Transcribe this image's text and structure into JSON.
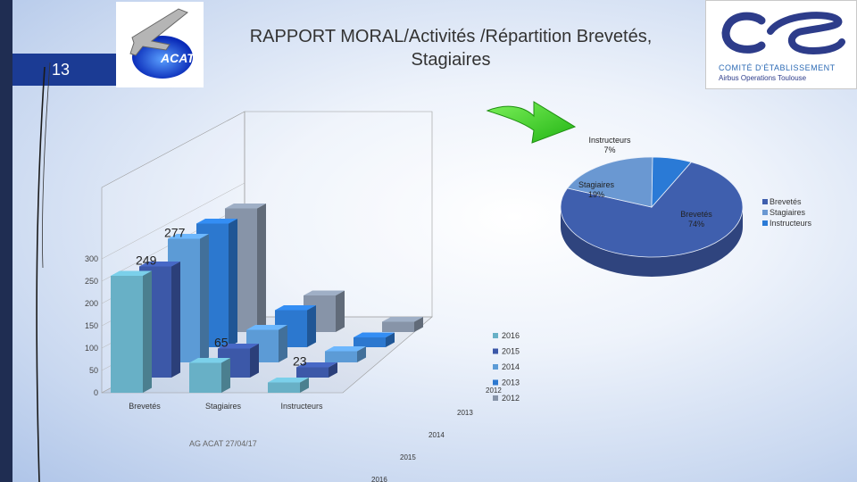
{
  "slide": {
    "number": "13",
    "title_line1": "RAPPORT MORAL/Activités /Répartition Brevetés,",
    "title_line2": "Stagiaires",
    "footer": "AG ACAT 27/04/17",
    "logo_left_text": "ACAT",
    "logo_right_sub1": "COMITÉ D'ÉTABLISSEMENT",
    "logo_right_sub2": "Airbus Operations Toulouse"
  },
  "colors": {
    "sidebar": "#1f2d52",
    "badge": "#1b3b94",
    "arrow": "#44dd22"
  },
  "chart_data": [
    {
      "type": "bar",
      "subtype": "3d-clustered",
      "categories": [
        "Brevetés",
        "Stagiaires",
        "Instructeurs"
      ],
      "yticks": [
        "0",
        "50",
        "100",
        "150",
        "200",
        "250",
        "300"
      ],
      "ylim": [
        0,
        300
      ],
      "series": [
        {
          "name": "2016",
          "color": "#68b0c6",
          "values": [
            262,
            67,
            23
          ]
        },
        {
          "name": "2015",
          "color": "#3c58a8",
          "values": [
            249,
            65,
            23
          ]
        },
        {
          "name": "2014",
          "color": "#5c9bd6",
          "values": [
            277,
            73,
            25
          ]
        },
        {
          "name": "2013",
          "color": "#2c78cf",
          "values": [
            277,
            83,
            22
          ]
        },
        {
          "name": "2012",
          "color": "#8794a8",
          "values": [
            277,
            82,
            23
          ]
        }
      ],
      "depth_labels": [
        "2012",
        "2013",
        "2014",
        "2015",
        "2016"
      ],
      "data_labels": [
        {
          "text": "277",
          "series": "2014",
          "category": "Brevetés"
        },
        {
          "text": "249",
          "series": "2015",
          "category": "Brevetés"
        },
        {
          "text": "65",
          "series": "2015",
          "category": "Stagiaires"
        },
        {
          "text": "23",
          "series": "2015",
          "category": "Instructeurs"
        }
      ],
      "legend_position": "right"
    },
    {
      "type": "pie",
      "subtype": "3d",
      "slices": [
        {
          "name": "Brevetés",
          "value": 74,
          "label": "Brevetés\n74%",
          "color": "#3f5fae"
        },
        {
          "name": "Stagiaires",
          "value": 19,
          "label": "Stagiaires\n19%",
          "color": "#6a98d2"
        },
        {
          "name": "Instructeurs",
          "value": 7,
          "label": "Instructeurs\n7%",
          "color": "#2a7ad6"
        }
      ],
      "legend_position": "right"
    }
  ]
}
